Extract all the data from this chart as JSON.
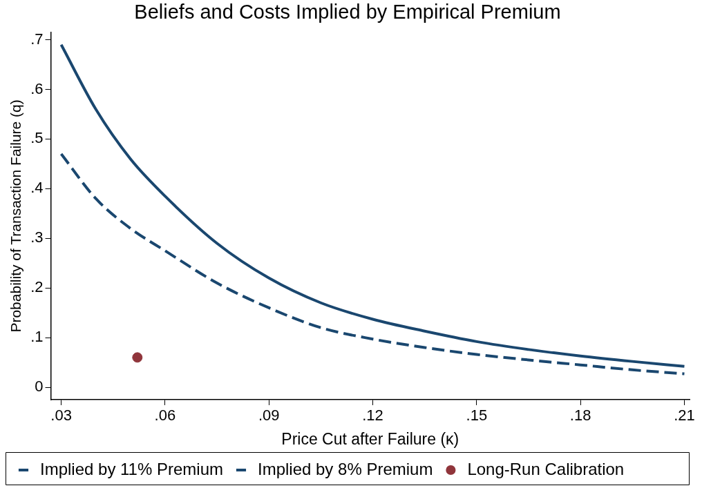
{
  "chart_data": {
    "type": "line",
    "title": "Beliefs and Costs Implied by Empirical Premium",
    "xlabel": "Price Cut after Failure (κ)",
    "ylabel": "Probability of Transaction Failure (q)",
    "xlim": [
      0.027,
      0.2115
    ],
    "xticks": [
      {
        "value": 0.03,
        "label": ".03"
      },
      {
        "value": 0.06,
        "label": ".06"
      },
      {
        "value": 0.09,
        "label": ".09"
      },
      {
        "value": 0.12,
        "label": ".12"
      },
      {
        "value": 0.15,
        "label": ".15"
      },
      {
        "value": 0.18,
        "label": ".18"
      },
      {
        "value": 0.21,
        "label": ".21"
      }
    ],
    "ylim": [
      -0.025,
      0.715
    ],
    "yticks": [
      0,
      {
        "value": 0.1,
        "label": ".1"
      },
      {
        "value": 0.2,
        "label": ".2"
      },
      {
        "value": 0.3,
        "label": ".3"
      },
      {
        "value": 0.4,
        "label": ".4"
      },
      {
        "value": 0.5,
        "label": ".5"
      },
      {
        "value": 0.6,
        "label": ".6"
      },
      {
        "value": 0.7,
        "label": ".7"
      }
    ],
    "grid": false,
    "legend": "bottom",
    "marker": "none",
    "series": [
      {
        "name": "Implied by 11% Premium",
        "color": "#1a476f",
        "line_style": "solid",
        "x": [
          0.03,
          0.04,
          0.05,
          0.06,
          0.075,
          0.09,
          0.105,
          0.12,
          0.135,
          0.15,
          0.165,
          0.18,
          0.195,
          0.21
        ],
        "values": [
          0.69,
          0.56,
          0.46,
          0.385,
          0.29,
          0.22,
          0.17,
          0.137,
          0.113,
          0.092,
          0.076,
          0.063,
          0.052,
          0.042
        ]
      },
      {
        "name": "Implied by 8% Premium",
        "color": "#1a476f",
        "line_style": "dashed",
        "x": [
          0.03,
          0.04,
          0.05,
          0.06,
          0.075,
          0.09,
          0.105,
          0.12,
          0.135,
          0.15,
          0.165,
          0.18,
          0.195,
          0.21
        ],
        "values": [
          0.47,
          0.38,
          0.32,
          0.275,
          0.21,
          0.16,
          0.12,
          0.097,
          0.08,
          0.066,
          0.055,
          0.045,
          0.035,
          0.027
        ]
      },
      {
        "name": "Long-Run Calibration",
        "type": "scatter",
        "marker": "circle",
        "color": "#90353b",
        "x": [
          0.052
        ],
        "values": [
          0.06
        ]
      }
    ]
  }
}
